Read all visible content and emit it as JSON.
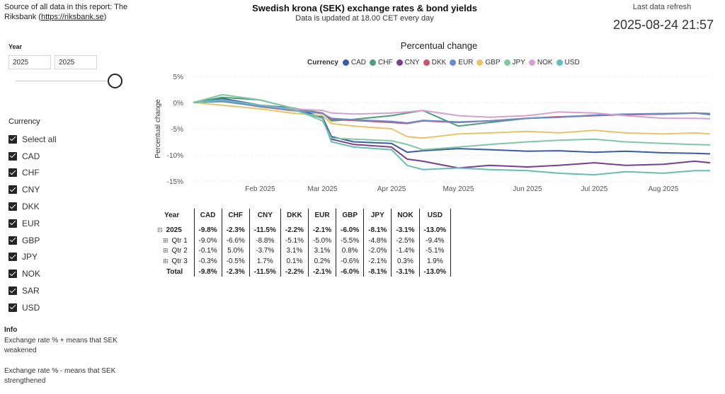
{
  "source": {
    "prefix": "Source of all data in this report: The Riksbank (",
    "link": "https://riksbank.se",
    "suffix": ")"
  },
  "header": {
    "title": "Swedish krona (SEK) exchange rates & bond yields",
    "subtitle": "Data is updated at 18.00 CET every day",
    "refresh_label": "Last data refresh",
    "refresh_value": "2025-08-24 21:57"
  },
  "year_slicer": {
    "title": "Year",
    "from": "2025",
    "to": "2025"
  },
  "currency_slicer": {
    "title": "Currency",
    "items": [
      "Select all",
      "CAD",
      "CHF",
      "CNY",
      "DKK",
      "EUR",
      "GBP",
      "JPY",
      "NOK",
      "SAR",
      "USD"
    ]
  },
  "info": {
    "title": "Info",
    "line1": "Exchange rate % + means that SEK weakened",
    "line2": "Exchange rate % - means that SEK strengthened"
  },
  "chart_data": {
    "type": "line",
    "title": "Percentual change",
    "ylabel": "Percentual change",
    "xlabel": "",
    "legend_title": "Currency",
    "legend_position": "top",
    "ylim": [
      -15,
      5
    ],
    "yticks": [
      5,
      0,
      -5,
      -10,
      -15
    ],
    "ytick_labels": [
      "5%",
      "0%",
      "-5%",
      "-10%",
      "-15%"
    ],
    "xlim": [
      "2025-01-02",
      "2025-08-22"
    ],
    "xticks": [
      "2025-02-01",
      "2025-03-01",
      "2025-04-01",
      "2025-05-01",
      "2025-06-01",
      "2025-07-01",
      "2025-08-01"
    ],
    "xtick_labels": [
      "Feb 2025",
      "Mar 2025",
      "Apr 2025",
      "May 2025",
      "Jun 2025",
      "Jul 2025",
      "Aug 2025"
    ],
    "grid": true,
    "x": [
      "2025-01-02",
      "2025-01-15",
      "2025-02-01",
      "2025-02-15",
      "2025-03-01",
      "2025-03-05",
      "2025-03-15",
      "2025-04-01",
      "2025-04-08",
      "2025-04-15",
      "2025-05-01",
      "2025-05-15",
      "2025-06-01",
      "2025-06-15",
      "2025-07-01",
      "2025-07-15",
      "2025-08-01",
      "2025-08-15",
      "2025-08-22"
    ],
    "series": [
      {
        "name": "CAD",
        "color": "#3A5BA8",
        "values": [
          0,
          0.8,
          -0.5,
          -1.0,
          -2.8,
          -6.5,
          -7.5,
          -7.8,
          -9.5,
          -9.2,
          -8.8,
          -9.0,
          -9.3,
          -9.2,
          -9.5,
          -9.3,
          -9.6,
          -9.7,
          -9.8
        ]
      },
      {
        "name": "CHF",
        "color": "#4E9E7E",
        "values": [
          0,
          1.0,
          0.5,
          -1.0,
          -2.0,
          -3.5,
          -3.2,
          -2.5,
          -2.0,
          -1.5,
          -4.5,
          -3.8,
          -3.0,
          -2.8,
          -2.5,
          -2.3,
          -2.2,
          -2.0,
          -2.3
        ]
      },
      {
        "name": "CNY",
        "color": "#7A3E8E",
        "values": [
          0,
          0.5,
          -0.5,
          -1.2,
          -3.0,
          -7.0,
          -8.0,
          -8.5,
          -10.8,
          -11.2,
          -12.5,
          -12.0,
          -12.3,
          -12.0,
          -11.5,
          -12.0,
          -11.8,
          -11.2,
          -11.5
        ]
      },
      {
        "name": "DKK",
        "color": "#C9566A",
        "values": [
          0,
          0.3,
          -0.8,
          -1.5,
          -2.0,
          -3.2,
          -3.4,
          -3.8,
          -4.0,
          -3.5,
          -3.8,
          -3.5,
          -3.0,
          -2.7,
          -2.5,
          -2.3,
          -2.2,
          -2.0,
          -2.2
        ]
      },
      {
        "name": "EUR",
        "color": "#6A8BCB",
        "values": [
          0,
          0.2,
          -0.7,
          -1.4,
          -2.1,
          -3.0,
          -3.3,
          -3.6,
          -3.9,
          -3.4,
          -3.7,
          -3.5,
          -3.0,
          -2.8,
          -2.4,
          -2.2,
          -2.1,
          -2.0,
          -2.1
        ]
      },
      {
        "name": "GBP",
        "color": "#E8C468",
        "values": [
          0,
          -0.5,
          -1.2,
          -2.0,
          -2.5,
          -4.0,
          -4.5,
          -5.0,
          -6.5,
          -6.8,
          -6.0,
          -5.8,
          -5.5,
          -5.8,
          -5.3,
          -5.8,
          -6.0,
          -5.8,
          -6.0
        ]
      },
      {
        "name": "JPY",
        "color": "#7FC8A2",
        "values": [
          0,
          1.5,
          0.5,
          -1.0,
          -3.5,
          -6.8,
          -7.0,
          -7.3,
          -8.0,
          -9.0,
          -8.5,
          -8.0,
          -7.5,
          -7.2,
          -7.0,
          -7.5,
          -7.8,
          -8.0,
          -8.1
        ]
      },
      {
        "name": "NOK",
        "color": "#D6A1D1",
        "values": [
          0,
          0.5,
          -0.5,
          -1.2,
          -1.5,
          -2.0,
          -2.2,
          -2.0,
          -1.8,
          -1.5,
          -2.5,
          -2.8,
          -2.5,
          -1.8,
          -2.0,
          -2.5,
          -3.0,
          -3.0,
          -3.1
        ]
      },
      {
        "name": "USD",
        "color": "#63BEB5",
        "values": [
          0,
          0.5,
          -0.5,
          -1.3,
          -3.0,
          -7.5,
          -8.5,
          -9.0,
          -12.0,
          -12.8,
          -12.5,
          -12.8,
          -13.0,
          -13.5,
          -13.8,
          -13.2,
          -13.5,
          -13.0,
          -13.0
        ]
      }
    ]
  },
  "table": {
    "headers": [
      "Year",
      "CAD",
      "CHF",
      "CNY",
      "DKK",
      "EUR",
      "GBP",
      "JPY",
      "NOK",
      "USD"
    ],
    "rows": [
      {
        "label": "2025",
        "expander": "⊟",
        "bold": true,
        "values": [
          "-9.8%",
          "-2.3%",
          "-11.5%",
          "-2.2%",
          "-2.1%",
          "-6.0%",
          "-8.1%",
          "-3.1%",
          "-13.0%"
        ]
      },
      {
        "label": "Qtr 1",
        "expander": "⊞",
        "bold": false,
        "values": [
          "-9.0%",
          "-6.6%",
          "-8.8%",
          "-5.1%",
          "-5.0%",
          "-5.5%",
          "-4.8%",
          "-2.5%",
          "-9.4%"
        ]
      },
      {
        "label": "Qtr 2",
        "expander": "⊞",
        "bold": false,
        "values": [
          "-0.1%",
          "5.0%",
          "-3.7%",
          "3.1%",
          "3.1%",
          "0.8%",
          "-2.0%",
          "-1.4%",
          "-5.1%"
        ]
      },
      {
        "label": "Qtr 3",
        "expander": "⊞",
        "bold": false,
        "values": [
          "-0.3%",
          "-0.5%",
          "1.7%",
          "0.1%",
          "0.2%",
          "-0.6%",
          "-2.1%",
          "0.3%",
          "1.9%"
        ]
      },
      {
        "label": "Total",
        "expander": "",
        "bold": true,
        "values": [
          "-9.8%",
          "-2.3%",
          "-11.5%",
          "-2.2%",
          "-2.1%",
          "-6.0%",
          "-8.1%",
          "-3.1%",
          "-13.0%"
        ]
      }
    ]
  }
}
